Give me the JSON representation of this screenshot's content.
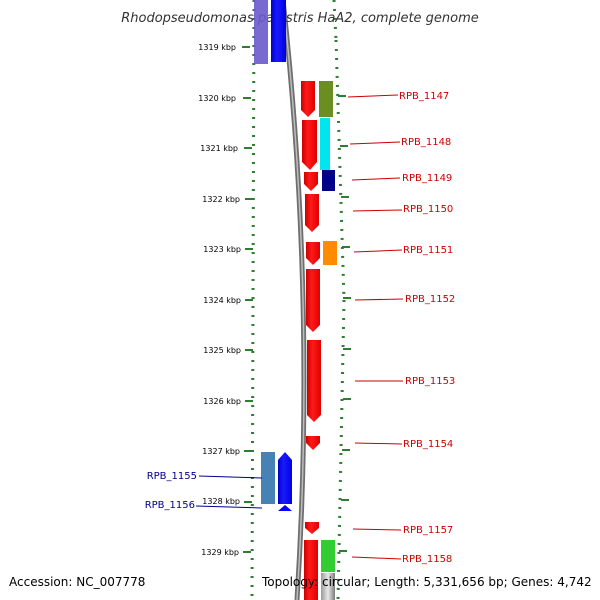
{
  "title": "Rhodopseudomonas palustris HaA2, complete genome",
  "footer": {
    "accession": "Accession: NC_007778",
    "topology": "Topology: circular; Length: 5,331,656 bp; Genes: 4,742"
  },
  "ticks": [
    "1319 kbp",
    "1320 kbp",
    "1321 kbp",
    "1322 kbp",
    "1323 kbp",
    "1324 kbp",
    "1325 kbp",
    "1326 kbp",
    "1327 kbp",
    "1328 kbp",
    "1329 kbp"
  ],
  "colors": {
    "forward_gene": "#0000ff",
    "reverse_gene": "#ff0000",
    "forward_label": "#00008b",
    "reverse_label": "#cc0000",
    "tick": "#2e7d32",
    "backbone": "#808080"
  },
  "labels_right": [
    "RPB_1147",
    "RPB_1148",
    "RPB_1149",
    "RPB_1150",
    "RPB_1151",
    "RPB_1152",
    "RPB_1153",
    "RPB_1154",
    "RPB_1157",
    "RPB_1158"
  ],
  "labels_left": [
    "RPB_1155",
    "RPB_1156"
  ]
}
